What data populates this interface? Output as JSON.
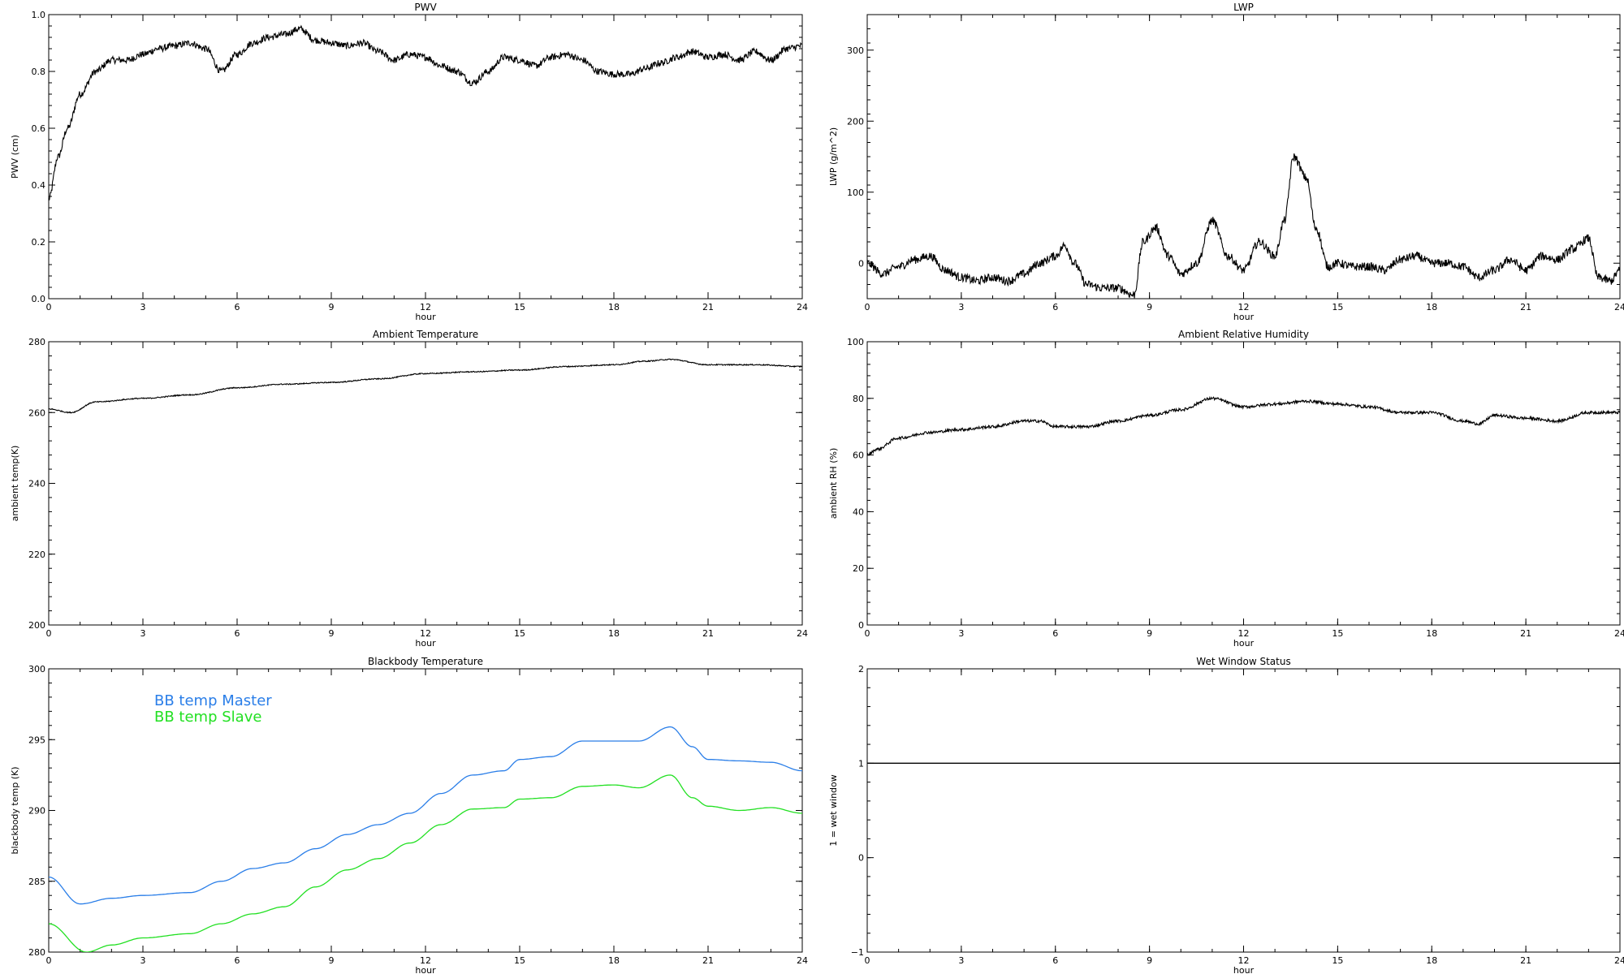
{
  "chart_data": [
    {
      "type": "line",
      "title": "PWV",
      "xlabel": "hour",
      "ylabel": "PWV (cm)",
      "xlim": [
        0,
        24
      ],
      "ylim": [
        0.0,
        1.0
      ],
      "x_ticks": [
        "0",
        "3",
        "6",
        "9",
        "12",
        "15",
        "18",
        "21",
        "24"
      ],
      "y_ticks": [
        "0.0",
        "0.2",
        "0.4",
        "0.6",
        "0.8",
        "1.0"
      ],
      "y_tick_values": [
        0.0,
        0.2,
        0.4,
        0.6,
        0.8,
        1.0
      ],
      "noise": 0.012,
      "series": [
        {
          "color": "#000000",
          "x": [
            0,
            0.3,
            0.6,
            1.0,
            1.5,
            2.0,
            2.5,
            3.0,
            3.5,
            4.0,
            4.5,
            5.0,
            5.5,
            6.0,
            6.5,
            7.0,
            7.5,
            8.0,
            8.5,
            9.0,
            9.5,
            10.0,
            10.5,
            11.0,
            11.5,
            12.0,
            12.5,
            13.0,
            13.5,
            14.0,
            14.5,
            15.0,
            15.5,
            16.0,
            16.5,
            17.0,
            17.5,
            18.0,
            18.5,
            19.0,
            19.5,
            20.0,
            20.5,
            21.0,
            21.5,
            22.0,
            22.5,
            23.0,
            23.5,
            24.0
          ],
          "y": [
            0.35,
            0.5,
            0.6,
            0.72,
            0.8,
            0.84,
            0.84,
            0.86,
            0.88,
            0.89,
            0.9,
            0.88,
            0.8,
            0.86,
            0.9,
            0.92,
            0.93,
            0.95,
            0.91,
            0.9,
            0.89,
            0.9,
            0.87,
            0.84,
            0.86,
            0.85,
            0.82,
            0.8,
            0.76,
            0.8,
            0.85,
            0.84,
            0.82,
            0.85,
            0.86,
            0.84,
            0.8,
            0.79,
            0.79,
            0.81,
            0.83,
            0.85,
            0.87,
            0.85,
            0.86,
            0.84,
            0.87,
            0.84,
            0.88,
            0.89
          ]
        }
      ]
    },
    {
      "type": "line",
      "title": "LWP",
      "xlabel": "hour",
      "ylabel": "LWP (g/m^2)",
      "xlim": [
        0,
        24
      ],
      "ylim": [
        -50,
        350
      ],
      "x_ticks": [
        "0",
        "3",
        "6",
        "9",
        "12",
        "15",
        "18",
        "21",
        "24"
      ],
      "y_ticks": [
        "0",
        "100",
        "200",
        "300"
      ],
      "y_tick_values": [
        0,
        100,
        200,
        300
      ],
      "noise": 6,
      "series": [
        {
          "color": "#000000",
          "x": [
            0,
            0.5,
            1.0,
            1.5,
            2.0,
            2.5,
            3.0,
            3.5,
            4.0,
            4.5,
            5.0,
            5.5,
            6.0,
            6.3,
            6.6,
            7.0,
            7.5,
            8.0,
            8.5,
            8.8,
            9.2,
            9.6,
            10.0,
            10.5,
            11.0,
            11.5,
            12.0,
            12.5,
            13.0,
            13.3,
            13.6,
            14.0,
            14.3,
            14.7,
            15.0,
            15.5,
            16.0,
            16.5,
            17.0,
            17.5,
            18.0,
            18.5,
            19.0,
            19.5,
            20.0,
            20.5,
            21.0,
            21.5,
            22.0,
            22.5,
            23.0,
            23.3,
            23.7,
            24.0
          ],
          "y": [
            0,
            -15,
            -5,
            5,
            10,
            -10,
            -20,
            -25,
            -20,
            -25,
            -15,
            0,
            10,
            25,
            0,
            -30,
            -35,
            -35,
            -45,
            30,
            50,
            10,
            -15,
            0,
            60,
            10,
            -10,
            30,
            10,
            60,
            150,
            120,
            50,
            -5,
            0,
            -5,
            -5,
            -10,
            5,
            10,
            0,
            0,
            -5,
            -20,
            -10,
            5,
            -10,
            10,
            5,
            20,
            35,
            -20,
            -25,
            -10
          ]
        }
      ]
    },
    {
      "type": "line",
      "title": "Ambient Temperature",
      "xlabel": "hour",
      "ylabel": "ambient temp(K)",
      "xlim": [
        0,
        24
      ],
      "ylim": [
        200,
        280
      ],
      "x_ticks": [
        "0",
        "3",
        "6",
        "9",
        "12",
        "15",
        "18",
        "21",
        "24"
      ],
      "y_ticks": [
        "200",
        "220",
        "240",
        "260",
        "280"
      ],
      "y_tick_values": [
        200,
        220,
        240,
        260,
        280
      ],
      "noise": 0.15,
      "series": [
        {
          "color": "#000000",
          "x": [
            0,
            0.7,
            1.5,
            3.0,
            4.5,
            6.0,
            7.5,
            9.0,
            10.5,
            12.0,
            13.5,
            15.0,
            16.5,
            18.0,
            19.0,
            19.8,
            21.0,
            22.5,
            24.0
          ],
          "y": [
            261,
            260,
            263,
            264,
            265,
            267,
            268,
            268.5,
            269.5,
            271,
            271.5,
            272,
            273,
            273.5,
            274.5,
            275,
            273.5,
            273.5,
            273
          ]
        }
      ]
    },
    {
      "type": "line",
      "title": "Ambient Relative Humidity",
      "xlabel": "hour",
      "ylabel": "ambient RH (%)",
      "xlim": [
        0,
        24
      ],
      "ylim": [
        0,
        100
      ],
      "x_ticks": [
        "0",
        "3",
        "6",
        "9",
        "12",
        "15",
        "18",
        "21",
        "24"
      ],
      "y_ticks": [
        "0",
        "20",
        "40",
        "60",
        "80",
        "100"
      ],
      "y_tick_values": [
        0,
        20,
        40,
        60,
        80,
        100
      ],
      "noise": 0.5,
      "series": [
        {
          "color": "#000000",
          "x": [
            0,
            0.3,
            1.0,
            2.0,
            3.0,
            4.0,
            5.0,
            5.5,
            6.0,
            7.0,
            8.0,
            9.0,
            10.0,
            11.0,
            12.0,
            13.0,
            14.0,
            15.0,
            16.0,
            17.0,
            18.0,
            19.0,
            19.5,
            20.0,
            21.0,
            22.0,
            23.0,
            24.0
          ],
          "y": [
            60,
            62,
            66,
            68,
            69,
            70,
            72,
            72,
            70,
            70,
            72,
            74,
            76,
            80,
            77,
            78,
            79,
            78,
            77,
            75,
            75,
            72,
            71,
            74,
            73,
            72,
            75,
            75
          ]
        }
      ]
    },
    {
      "type": "line",
      "title": "Blackbody Temperature",
      "xlabel": "hour",
      "ylabel": "blackbody temp (K)",
      "xlim": [
        0,
        24
      ],
      "ylim": [
        280,
        300
      ],
      "x_ticks": [
        "0",
        "3",
        "6",
        "9",
        "12",
        "15",
        "18",
        "21",
        "24"
      ],
      "y_ticks": [
        "280",
        "285",
        "290",
        "295",
        "300"
      ],
      "y_tick_values": [
        280,
        285,
        290,
        295,
        300
      ],
      "noise": 0,
      "legend": [
        "BB temp Master",
        "BB temp Slave"
      ],
      "series": [
        {
          "name": "BB temp Master",
          "color": "#2a7ee8",
          "x": [
            0,
            1.0,
            2.0,
            3.0,
            4.5,
            5.5,
            6.5,
            7.5,
            8.5,
            9.5,
            10.5,
            11.5,
            12.5,
            13.5,
            14.5,
            15.0,
            16.0,
            17.0,
            18.0,
            18.8,
            19.8,
            20.5,
            21.0,
            22.0,
            23.0,
            24.0
          ],
          "y": [
            285.3,
            283.4,
            283.8,
            284.0,
            284.2,
            285.0,
            285.9,
            286.3,
            287.3,
            288.3,
            289.0,
            289.8,
            291.2,
            292.5,
            292.8,
            293.6,
            293.8,
            294.9,
            294.9,
            294.9,
            295.9,
            294.5,
            293.6,
            293.5,
            293.4,
            292.8
          ]
        },
        {
          "name": "BB temp Slave",
          "color": "#22e022",
          "x": [
            0,
            1.2,
            2.0,
            3.0,
            4.5,
            5.5,
            6.5,
            7.5,
            8.5,
            9.5,
            10.5,
            11.5,
            12.5,
            13.5,
            14.5,
            15.0,
            16.0,
            17.0,
            18.0,
            18.8,
            19.8,
            20.5,
            21.0,
            22.0,
            23.0,
            24.0
          ],
          "y": [
            282.0,
            280.0,
            280.5,
            281.0,
            281.3,
            282.0,
            282.7,
            283.2,
            284.6,
            285.8,
            286.6,
            287.7,
            289.0,
            290.1,
            290.2,
            290.8,
            290.9,
            291.7,
            291.8,
            291.6,
            292.5,
            290.9,
            290.3,
            290.0,
            290.2,
            289.8
          ]
        }
      ]
    },
    {
      "type": "line",
      "title": "Wet Window Status",
      "xlabel": "hour",
      "ylabel": "1 = wet window",
      "xlim": [
        0,
        24
      ],
      "ylim": [
        -1,
        2
      ],
      "x_ticks": [
        "0",
        "3",
        "6",
        "9",
        "12",
        "15",
        "18",
        "21",
        "24"
      ],
      "y_ticks": [
        "−1",
        "0",
        "1",
        "2"
      ],
      "y_tick_values": [
        -1,
        0,
        1,
        2
      ],
      "noise": 0,
      "series": [
        {
          "color": "#000000",
          "x": [
            0,
            24
          ],
          "y": [
            1,
            1
          ]
        }
      ]
    }
  ]
}
